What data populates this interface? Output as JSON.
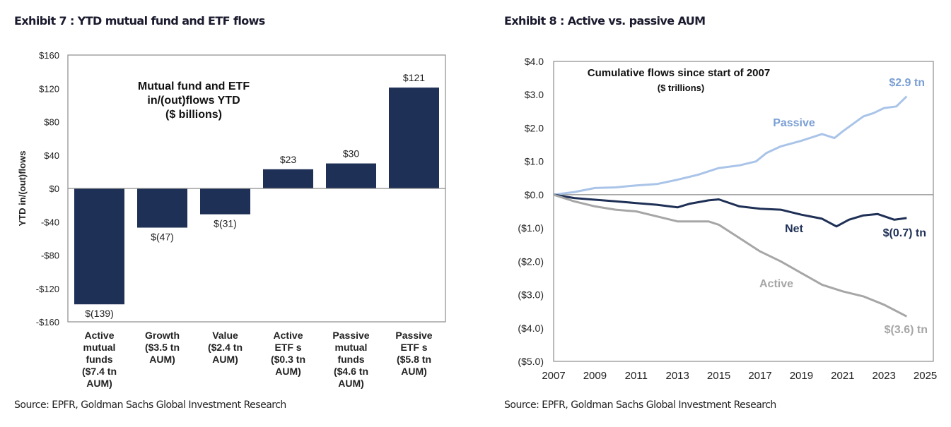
{
  "exhibits": [
    {
      "title": "Exhibit 7 : YTD mutual fund and ETF flows",
      "source": "Source: EPFR, Goldman Sachs Global Investment Research"
    },
    {
      "title": "Exhibit 8 : Active vs. passive AUM",
      "source": "Source: EPFR, Goldman Sachs Global Investment Research"
    }
  ],
  "colors": {
    "bar": "#1f3056",
    "net": "#1f3056",
    "passive": "#a9c4e8",
    "active": "#a6a6a6",
    "passive_label": "#7a9fd4",
    "active_label": "#a6a6a6"
  },
  "chart_data": [
    {
      "type": "bar",
      "title": "Mutual fund and ETF in/(out)flows YTD ($ billions)",
      "title_lines": [
        "Mutual fund and ETF",
        "in/(out)flows YTD",
        "($ billions)"
      ],
      "ylabel": "YTD in/(out)flows",
      "xlabel": "",
      "ylim": [
        -160,
        160
      ],
      "yticks": [
        160,
        120,
        80,
        40,
        0,
        -40,
        -80,
        -120,
        -160
      ],
      "ytick_labels": [
        "$160",
        "$120",
        "$80",
        "$40",
        "$0",
        "-$40",
        "-$80",
        "-$120",
        "-$160"
      ],
      "categories": [
        [
          "Active",
          "mutual",
          "funds",
          "($7.4 tn",
          "AUM)"
        ],
        [
          "Growth",
          "($3.5 tn",
          "AUM)"
        ],
        [
          "Value",
          "($2.4 tn",
          "AUM)"
        ],
        [
          "Active",
          "ETF s",
          "($0.3 tn",
          "AUM)"
        ],
        [
          "Passive",
          "mutual",
          "funds",
          "($4.6 tn",
          "AUM)"
        ],
        [
          "Passive",
          "ETF s",
          "($5.8 tn",
          "AUM)"
        ]
      ],
      "values": [
        -139,
        -47,
        -31,
        23,
        30,
        121
      ],
      "data_labels": [
        "$(139)",
        "$(47)",
        "$(31)",
        "$23",
        "$30",
        "$121"
      ],
      "grid": false
    },
    {
      "type": "line",
      "title": "Cumulative flows since start of 2007",
      "subtitle": "($ trillions)",
      "xlabel": "",
      "ylabel": "",
      "xlim": [
        2007,
        2025
      ],
      "ylim": [
        -5,
        4
      ],
      "xticks": [
        2007,
        2009,
        2011,
        2013,
        2015,
        2017,
        2019,
        2021,
        2023,
        2025
      ],
      "yticks": [
        4,
        3,
        2,
        1,
        0,
        -1,
        -2,
        -3,
        -4,
        -5
      ],
      "ytick_labels": [
        "$4.0",
        "$3.0",
        "$2.0",
        "$1.0",
        "$0.0",
        "($1.0)",
        "($2.0)",
        "($3.0)",
        "($4.0)",
        "($5.0)"
      ],
      "grid": false,
      "series": [
        {
          "name": "Passive",
          "end_label": "$2.9 tn",
          "x": [
            2007,
            2008,
            2009,
            2010,
            2011,
            2012,
            2013,
            2014,
            2015,
            2016,
            2016.8,
            2017.3,
            2018,
            2019,
            2020,
            2020.6,
            2021,
            2022,
            2022.5,
            2023,
            2023.6,
            2024.1
          ],
          "y": [
            0,
            0.08,
            0.2,
            0.22,
            0.28,
            0.32,
            0.45,
            0.6,
            0.8,
            0.88,
            1.0,
            1.25,
            1.45,
            1.62,
            1.82,
            1.7,
            1.9,
            2.35,
            2.45,
            2.6,
            2.65,
            2.95
          ]
        },
        {
          "name": "Net",
          "end_label": "$(0.7) tn",
          "x": [
            2007,
            2008,
            2009,
            2010,
            2011,
            2012,
            2013,
            2013.6,
            2014.5,
            2015,
            2016,
            2017,
            2018,
            2019,
            2020,
            2020.7,
            2021.3,
            2022,
            2022.7,
            2023.5,
            2024.1
          ],
          "y": [
            0,
            -0.1,
            -0.15,
            -0.2,
            -0.25,
            -0.3,
            -0.38,
            -0.27,
            -0.17,
            -0.14,
            -0.35,
            -0.42,
            -0.45,
            -0.6,
            -0.72,
            -0.95,
            -0.75,
            -0.62,
            -0.58,
            -0.75,
            -0.7
          ]
        },
        {
          "name": "Active",
          "end_label": "$(3.6) tn",
          "x": [
            2007,
            2008,
            2009,
            2010,
            2011,
            2012,
            2013,
            2014.5,
            2015,
            2016,
            2017,
            2018,
            2019,
            2020,
            2021,
            2022,
            2023,
            2024.1
          ],
          "y": [
            0,
            -0.2,
            -0.35,
            -0.45,
            -0.5,
            -0.65,
            -0.8,
            -0.8,
            -0.9,
            -1.3,
            -1.7,
            -2.0,
            -2.35,
            -2.7,
            -2.9,
            -3.05,
            -3.3,
            -3.65
          ]
        }
      ]
    }
  ]
}
